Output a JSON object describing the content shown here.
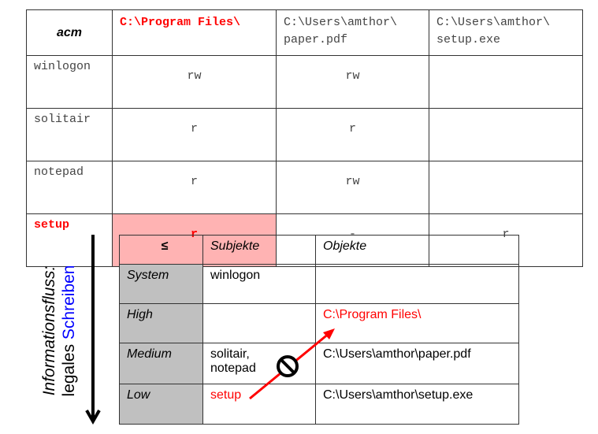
{
  "acm_table": {
    "corner": "acm",
    "columns": [
      "C:\\Program Files\\",
      "C:\\Users\\amthor\\ paper.pdf",
      "C:\\Users\\amthor\\ setup.exe"
    ],
    "column_lines": [
      [
        "C:\\Program Files\\",
        ""
      ],
      [
        "C:\\Users\\amthor\\",
        "paper.pdf"
      ],
      [
        "C:\\Users\\amthor\\",
        "setup.exe"
      ]
    ],
    "rows": [
      {
        "subject": "winlogon",
        "cells": [
          "rw",
          "rw",
          ""
        ]
      },
      {
        "subject": "solitair",
        "cells": [
          "r",
          "r",
          ""
        ]
      },
      {
        "subject": "notepad",
        "cells": [
          "r",
          "rw",
          ""
        ]
      },
      {
        "subject": "setup",
        "cells": [
          "r",
          "-",
          "r"
        ]
      }
    ],
    "highlight_color": "#ffb3b3",
    "accent_color": "#ff0000"
  },
  "side_label": {
    "line1": "Informationsfluss:",
    "line2_a": "legales ",
    "line2_b": "Schreiben",
    "blue": "#0000ff"
  },
  "level_table": {
    "headers": [
      "≤",
      "Subjekte",
      "Objekte"
    ],
    "rows": [
      {
        "level": "System",
        "subjects": [
          "winlogon"
        ],
        "objects": ""
      },
      {
        "level": "High",
        "subjects": [],
        "objects": "C:\\Program Files\\"
      },
      {
        "level": "Medium",
        "subjects": [
          "solitair,",
          "notepad"
        ],
        "objects": "C:\\Users\\amthor\\paper.pdf"
      },
      {
        "level": "Low",
        "subjects": [
          "setup"
        ],
        "objects": "C:\\Users\\amthor\\setup.exe"
      }
    ]
  },
  "icons": {
    "prohibited": "no-entry-icon",
    "flow_arrow": "arrow-down-icon"
  }
}
